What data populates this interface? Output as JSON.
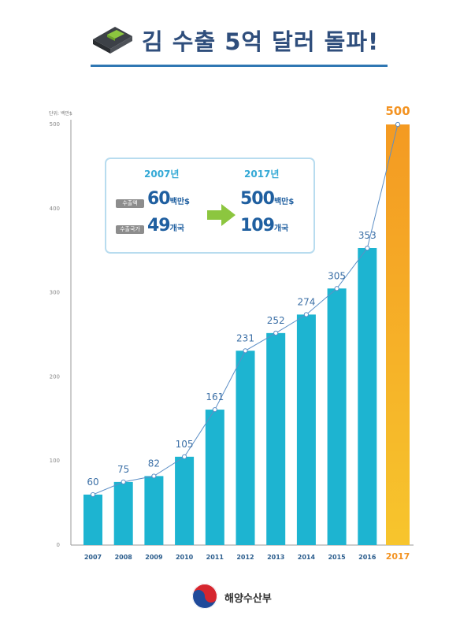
{
  "header": {
    "title": "김 수출 5억 달러 돌파!",
    "icon": "seaweed-pack-icon"
  },
  "chart_data": {
    "type": "bar",
    "title": "김 수출 5억 달러 돌파!",
    "ylabel": "단위: 백만$",
    "ylim": [
      0,
      500
    ],
    "yticks": [
      0,
      100,
      200,
      300,
      400,
      500
    ],
    "categories": [
      "2007",
      "2008",
      "2009",
      "2010",
      "2011",
      "2012",
      "2013",
      "2014",
      "2015",
      "2016",
      "2017"
    ],
    "values": [
      60,
      75,
      82,
      105,
      161,
      231,
      252,
      274,
      305,
      353,
      500
    ],
    "highlight_category": "2017",
    "grid": false,
    "overlay_line": true,
    "colors": {
      "bar": "#1db4d1",
      "highlight_top": "#f49a22",
      "highlight_bottom": "#f7c52d",
      "line": "#5d8fc6",
      "label": "#3b6fa6",
      "highlight_label": "#f39322"
    }
  },
  "summary": {
    "from": {
      "year": "2007년",
      "amount_label": "수출액",
      "amount_value": "60",
      "amount_unit": "백만$",
      "countries_label": "수출국가",
      "countries_value": "49",
      "countries_unit": "개국"
    },
    "to": {
      "year": "2017년",
      "amount_value": "500",
      "amount_unit": "백만$",
      "countries_value": "109",
      "countries_unit": "개국"
    }
  },
  "footer": {
    "ministry": "해양수산부"
  }
}
